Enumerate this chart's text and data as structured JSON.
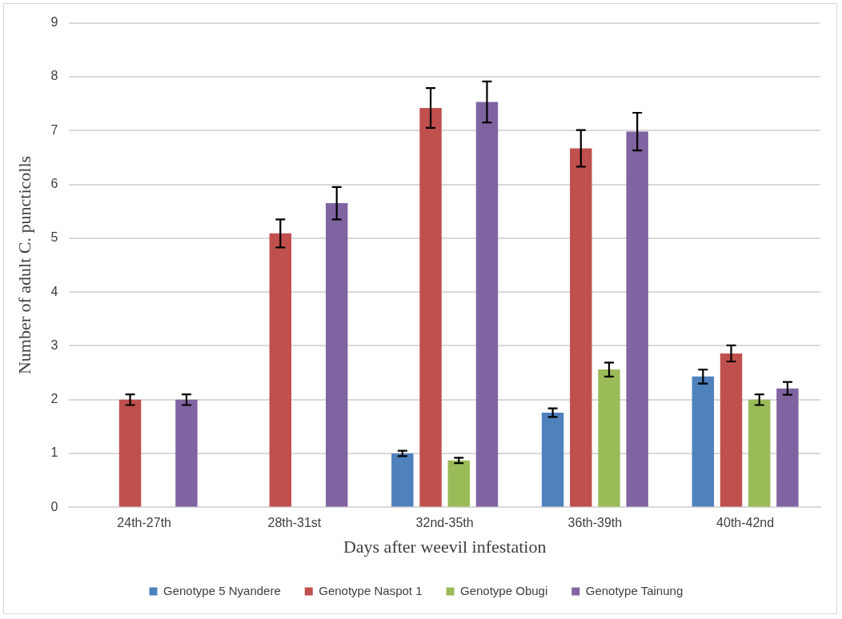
{
  "chart_data": {
    "type": "bar",
    "xlabel": "Days after weevil infestation",
    "ylabel": "Number of adult C. puncticolls",
    "categories": [
      "24th-27th",
      "28th-31st",
      "32nd-35th",
      "36th-39th",
      "40th-42nd"
    ],
    "series": [
      {
        "name": "Genotype 5 Nyandere",
        "color": "#4f81bd",
        "values": [
          null,
          null,
          1.0,
          1.76,
          2.43
        ],
        "errors": [
          null,
          null,
          0.05,
          0.08,
          0.13
        ]
      },
      {
        "name": "Genotype Naspot 1",
        "color": "#c0504d",
        "values": [
          2.0,
          5.09,
          7.42,
          6.67,
          2.86
        ],
        "errors": [
          0.1,
          0.26,
          0.37,
          0.34,
          0.15
        ]
      },
      {
        "name": "Genotype Obugi",
        "color": "#9bbb59",
        "values": [
          null,
          null,
          0.87,
          2.56,
          2.0
        ],
        "errors": [
          null,
          null,
          0.05,
          0.13,
          0.1
        ]
      },
      {
        "name": "Genotype Tainung",
        "color": "#8064a2",
        "values": [
          2.0,
          5.65,
          7.53,
          6.98,
          2.21
        ],
        "errors": [
          0.1,
          0.3,
          0.38,
          0.35,
          0.12
        ]
      }
    ],
    "ylim": [
      0,
      9
    ],
    "yticks": [
      0,
      1,
      2,
      3,
      4,
      5,
      6,
      7,
      8,
      9
    ],
    "grid": "y",
    "legend": "bottom"
  }
}
